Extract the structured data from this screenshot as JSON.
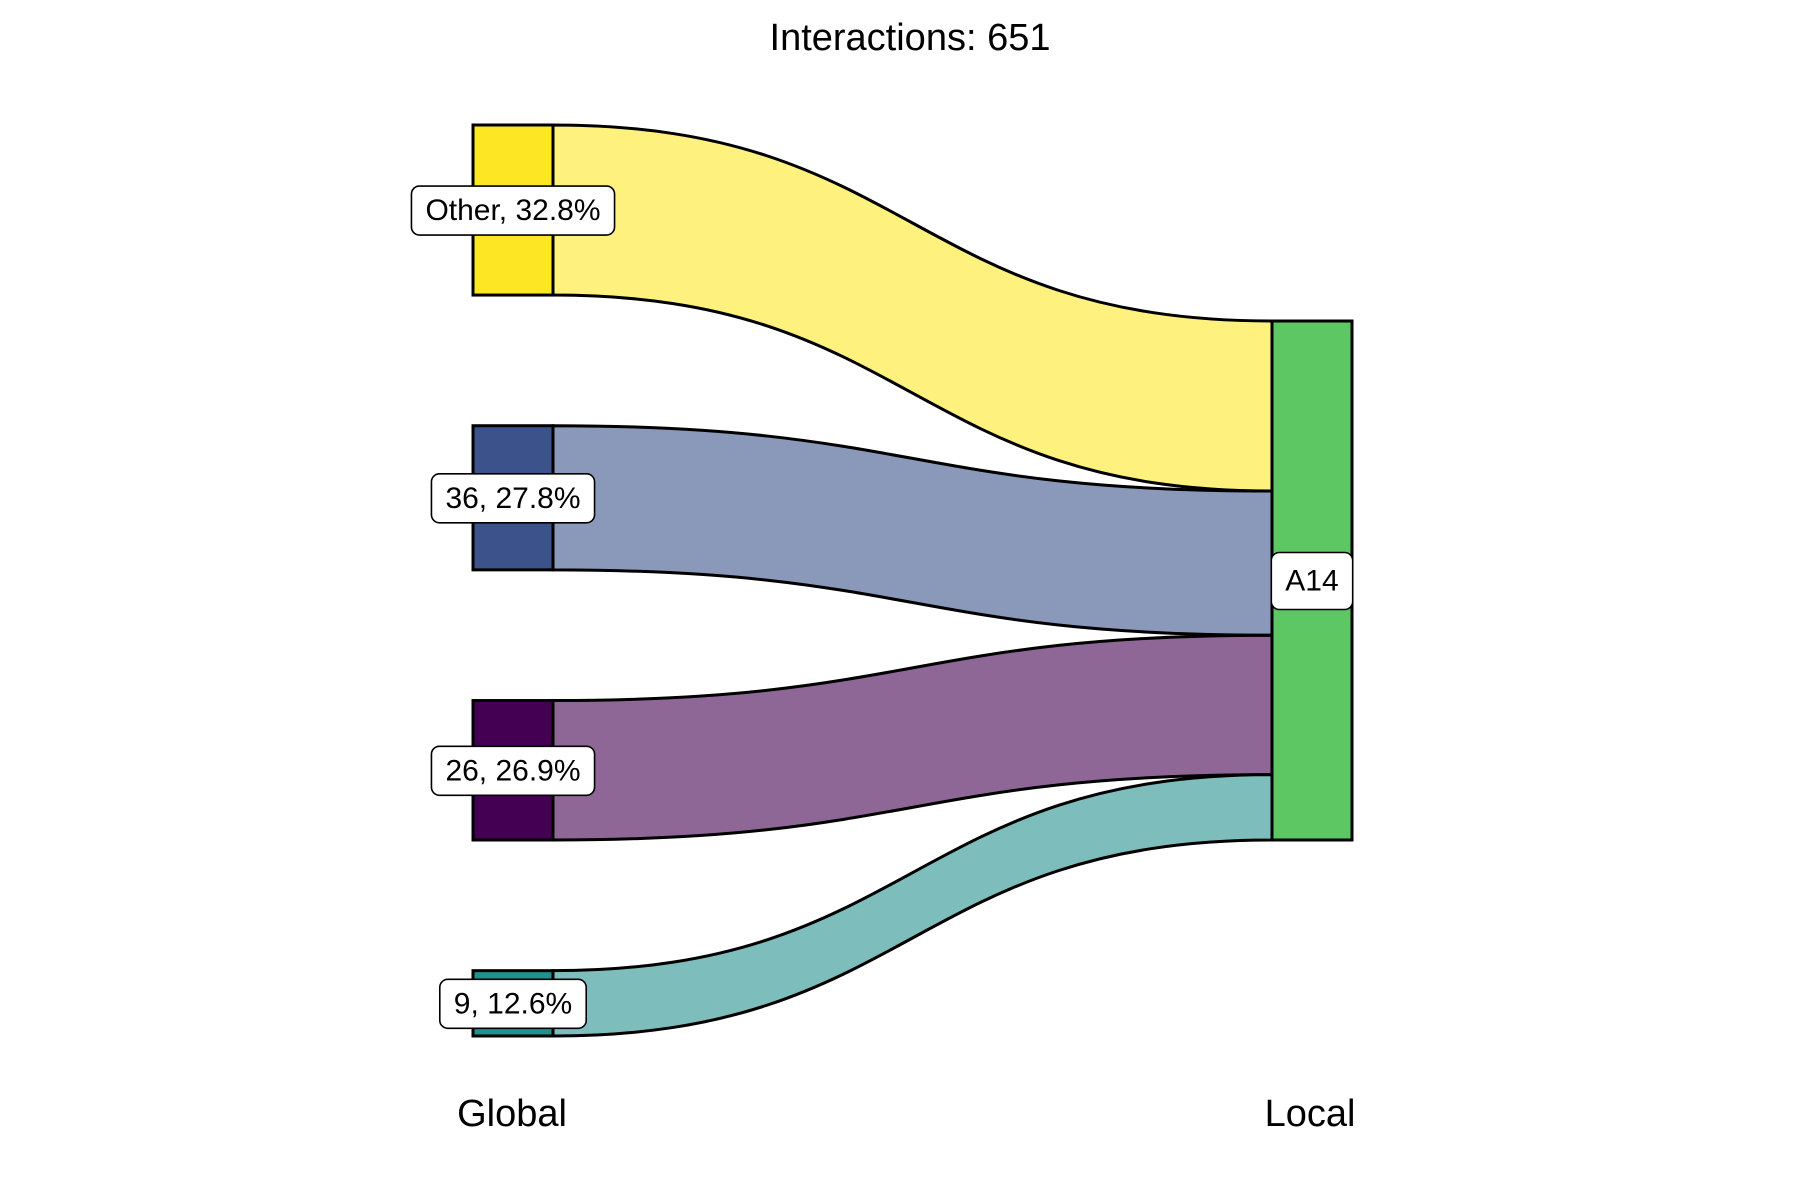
{
  "chart_data": {
    "type": "sankey",
    "title": "Interactions: 651",
    "axes": [
      "Global",
      "Local"
    ],
    "sources": [
      {
        "name": "Other",
        "percent": "32.8%",
        "label": "Other, 32.8%",
        "node_color": "#FDE725",
        "flow_color": "#FEF17E"
      },
      {
        "name": "36",
        "percent": "27.8%",
        "label": "36, 27.8%",
        "node_color": "#3B528B",
        "flow_color": "#8A98B9"
      },
      {
        "name": "26",
        "percent": "26.9%",
        "label": "26, 26.9%",
        "node_color": "#440154",
        "flow_color": "#8E6796"
      },
      {
        "name": "9",
        "percent": "12.6%",
        "label": "9, 12.6%",
        "node_color": "#21918C",
        "flow_color": "#7DBDBB"
      }
    ],
    "target": {
      "name": "A14",
      "label": "A14",
      "node_color": "#5DC863"
    },
    "total": 651
  }
}
